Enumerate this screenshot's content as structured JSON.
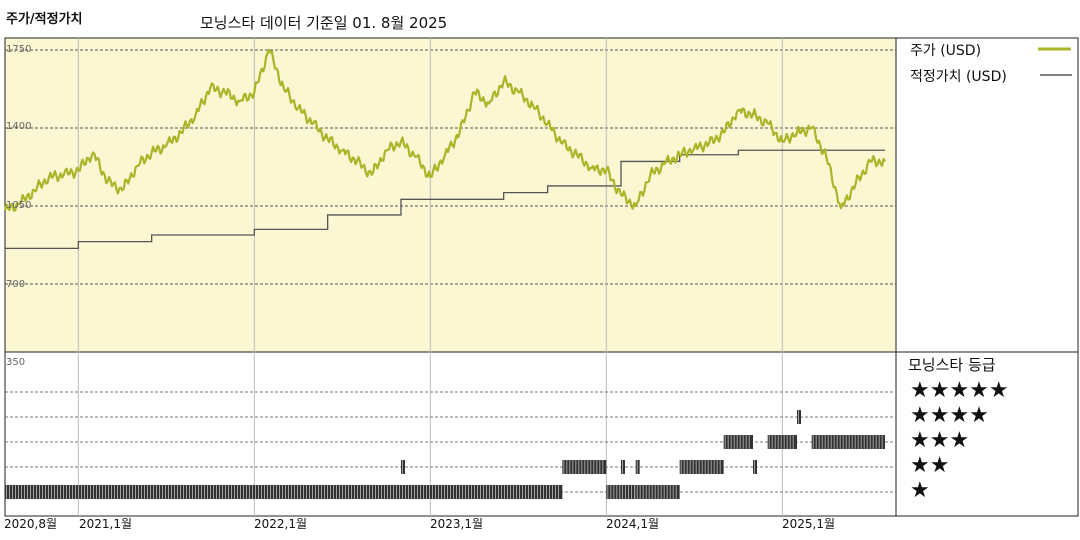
{
  "header": {
    "title": "주가/적정가치",
    "subtitle": "모닝스타 데이터 기준일 01. 8월 2025"
  },
  "legend": {
    "price": "주가 (USD)",
    "fair_value": "적정가치 (USD)"
  },
  "rating_panel": {
    "title": "모닝스타 등급",
    "levels": [
      "★★★★★",
      "★★★★",
      "★★★",
      "★★",
      "★"
    ]
  },
  "colors": {
    "price_line": "#aab529",
    "fair_value_line": "#555555",
    "upper_panel_bg": "#faf7d2",
    "rating_bars": "#333333"
  },
  "chart_data": {
    "type": "line",
    "xlim": [
      "2020-08",
      "2025-08"
    ],
    "ylim": [
      700,
      1750
    ],
    "y_ticks": [
      350,
      700,
      1050,
      1400,
      1750
    ],
    "x_ticks": [
      "2020,8월",
      "2021,1월",
      "2022,1월",
      "2023,1월",
      "2024,1월",
      "2025,1월"
    ],
    "series": [
      {
        "name": "주가 (USD)",
        "points": [
          [
            "2020-08",
            1030
          ],
          [
            "2020-09",
            1060
          ],
          [
            "2020-10",
            1120
          ],
          [
            "2020-11",
            1180
          ],
          [
            "2020-12",
            1190
          ],
          [
            "2021-01",
            1210
          ],
          [
            "2021-02",
            1290
          ],
          [
            "2021-03",
            1160
          ],
          [
            "2021-04",
            1120
          ],
          [
            "2021-05",
            1230
          ],
          [
            "2021-06",
            1290
          ],
          [
            "2021-07",
            1320
          ],
          [
            "2021-08",
            1380
          ],
          [
            "2021-09",
            1460
          ],
          [
            "2021-10",
            1580
          ],
          [
            "2021-11",
            1560
          ],
          [
            "2021-12",
            1520
          ],
          [
            "2022-01",
            1560
          ],
          [
            "2022-02",
            1750
          ],
          [
            "2022-03",
            1580
          ],
          [
            "2022-04",
            1490
          ],
          [
            "2022-05",
            1420
          ],
          [
            "2022-06",
            1350
          ],
          [
            "2022-07",
            1300
          ],
          [
            "2022-08",
            1250
          ],
          [
            "2022-09",
            1190
          ],
          [
            "2022-10",
            1300
          ],
          [
            "2022-11",
            1340
          ],
          [
            "2022-12",
            1270
          ],
          [
            "2023-01",
            1180
          ],
          [
            "2023-02",
            1280
          ],
          [
            "2023-03",
            1380
          ],
          [
            "2023-04",
            1560
          ],
          [
            "2023-05",
            1510
          ],
          [
            "2023-06",
            1610
          ],
          [
            "2023-07",
            1560
          ],
          [
            "2023-08",
            1500
          ],
          [
            "2023-09",
            1420
          ],
          [
            "2023-10",
            1330
          ],
          [
            "2023-11",
            1280
          ],
          [
            "2023-12",
            1220
          ],
          [
            "2024-01",
            1210
          ],
          [
            "2024-02",
            1100
          ],
          [
            "2024-03",
            1050
          ],
          [
            "2024-04",
            1190
          ],
          [
            "2024-05",
            1240
          ],
          [
            "2024-06",
            1280
          ],
          [
            "2024-07",
            1310
          ],
          [
            "2024-08",
            1330
          ],
          [
            "2024-09",
            1380
          ],
          [
            "2024-10",
            1480
          ],
          [
            "2024-11",
            1460
          ],
          [
            "2024-12",
            1420
          ],
          [
            "2025-01",
            1340
          ],
          [
            "2025-02",
            1380
          ],
          [
            "2025-03",
            1400
          ],
          [
            "2025-04",
            1270
          ],
          [
            "2025-05",
            1040
          ],
          [
            "2025-06",
            1150
          ],
          [
            "2025-07",
            1250
          ],
          [
            "2025-08",
            1250
          ]
        ]
      },
      {
        "name": "적정가치 (USD)",
        "steps": [
          [
            "2020-08",
            860
          ],
          [
            "2021-01",
            890
          ],
          [
            "2021-06",
            920
          ],
          [
            "2022-01",
            945
          ],
          [
            "2022-06",
            1010
          ],
          [
            "2022-11",
            1080
          ],
          [
            "2023-06",
            1110
          ],
          [
            "2023-09",
            1140
          ],
          [
            "2024-02",
            1250
          ],
          [
            "2024-06",
            1280
          ],
          [
            "2024-10",
            1300
          ],
          [
            "2025-06",
            1300
          ]
        ]
      }
    ],
    "ratings": [
      {
        "stars": 1,
        "from": "2020-08",
        "to": "2023-10"
      },
      {
        "stars": 2,
        "from": "2022-11",
        "to": "2022-11"
      },
      {
        "stars": 2,
        "from": "2023-10",
        "to": "2024-01"
      },
      {
        "stars": 1,
        "from": "2024-01",
        "to": "2024-02"
      },
      {
        "stars": 2,
        "from": "2024-02",
        "to": "2024-02"
      },
      {
        "stars": 1,
        "from": "2024-02",
        "to": "2024-03"
      },
      {
        "stars": 2,
        "from": "2024-03",
        "to": "2024-03"
      },
      {
        "stars": 1,
        "from": "2024-03",
        "to": "2024-06"
      },
      {
        "stars": 2,
        "from": "2024-06",
        "to": "2024-09"
      },
      {
        "stars": 3,
        "from": "2024-09",
        "to": "2024-11"
      },
      {
        "stars": 3,
        "from": "2024-12",
        "to": "2025-02"
      },
      {
        "stars": 2,
        "from": "2024-11",
        "to": "2024-11"
      },
      {
        "stars": 4,
        "from": "2025-02",
        "to": "2025-02"
      },
      {
        "stars": 3,
        "from": "2025-03",
        "to": "2025-08"
      }
    ]
  }
}
